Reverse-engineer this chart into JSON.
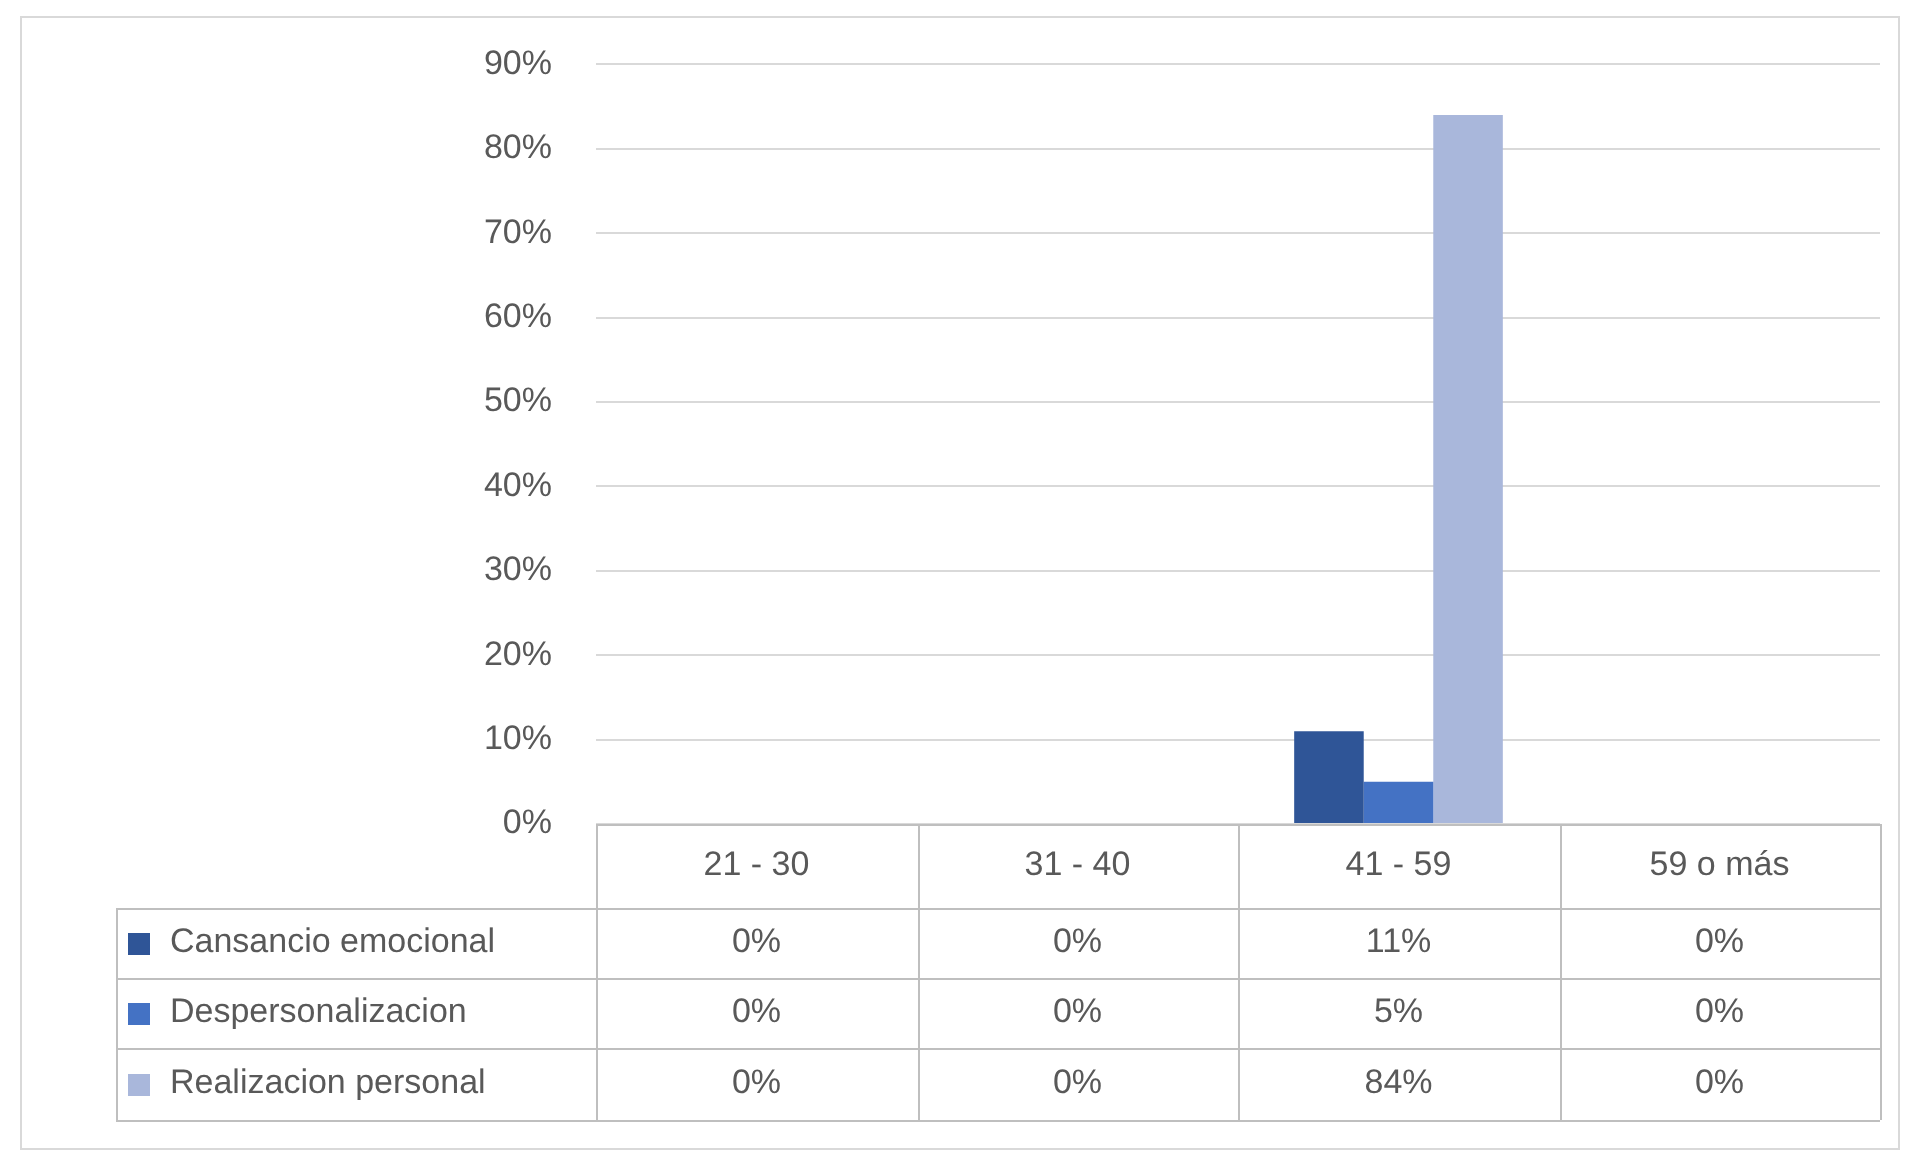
{
  "chart_data": {
    "type": "bar",
    "categories": [
      "21 - 30",
      "31 - 40",
      "41 - 59",
      "59 o más"
    ],
    "series": [
      {
        "name": "Cansancio emocional",
        "color": "#2f5597",
        "values": [
          0,
          0,
          11,
          0
        ],
        "value_labels": [
          "0%",
          "0%",
          "11%",
          "0%"
        ]
      },
      {
        "name": "Despersonalizacion",
        "color": "#4472c4",
        "values": [
          0,
          0,
          5,
          0
        ],
        "value_labels": [
          "0%",
          "0%",
          "5%",
          "0%"
        ]
      },
      {
        "name": "Realizacion personal",
        "color": "#a9b7db",
        "values": [
          0,
          0,
          84,
          0
        ],
        "value_labels": [
          "0%",
          "0%",
          "84%",
          "0%"
        ]
      }
    ],
    "ylim": [
      0,
      90
    ],
    "yticks": [
      {
        "value": 0,
        "label": "0%"
      },
      {
        "value": 10,
        "label": "10%"
      },
      {
        "value": 20,
        "label": "20%"
      },
      {
        "value": 30,
        "label": "30%"
      },
      {
        "value": 40,
        "label": "40%"
      },
      {
        "value": 50,
        "label": "50%"
      },
      {
        "value": 60,
        "label": "60%"
      },
      {
        "value": 70,
        "label": "70%"
      },
      {
        "value": 80,
        "label": "80%"
      },
      {
        "value": 90,
        "label": "90%"
      }
    ],
    "grid": "y",
    "legend": "bottom"
  }
}
